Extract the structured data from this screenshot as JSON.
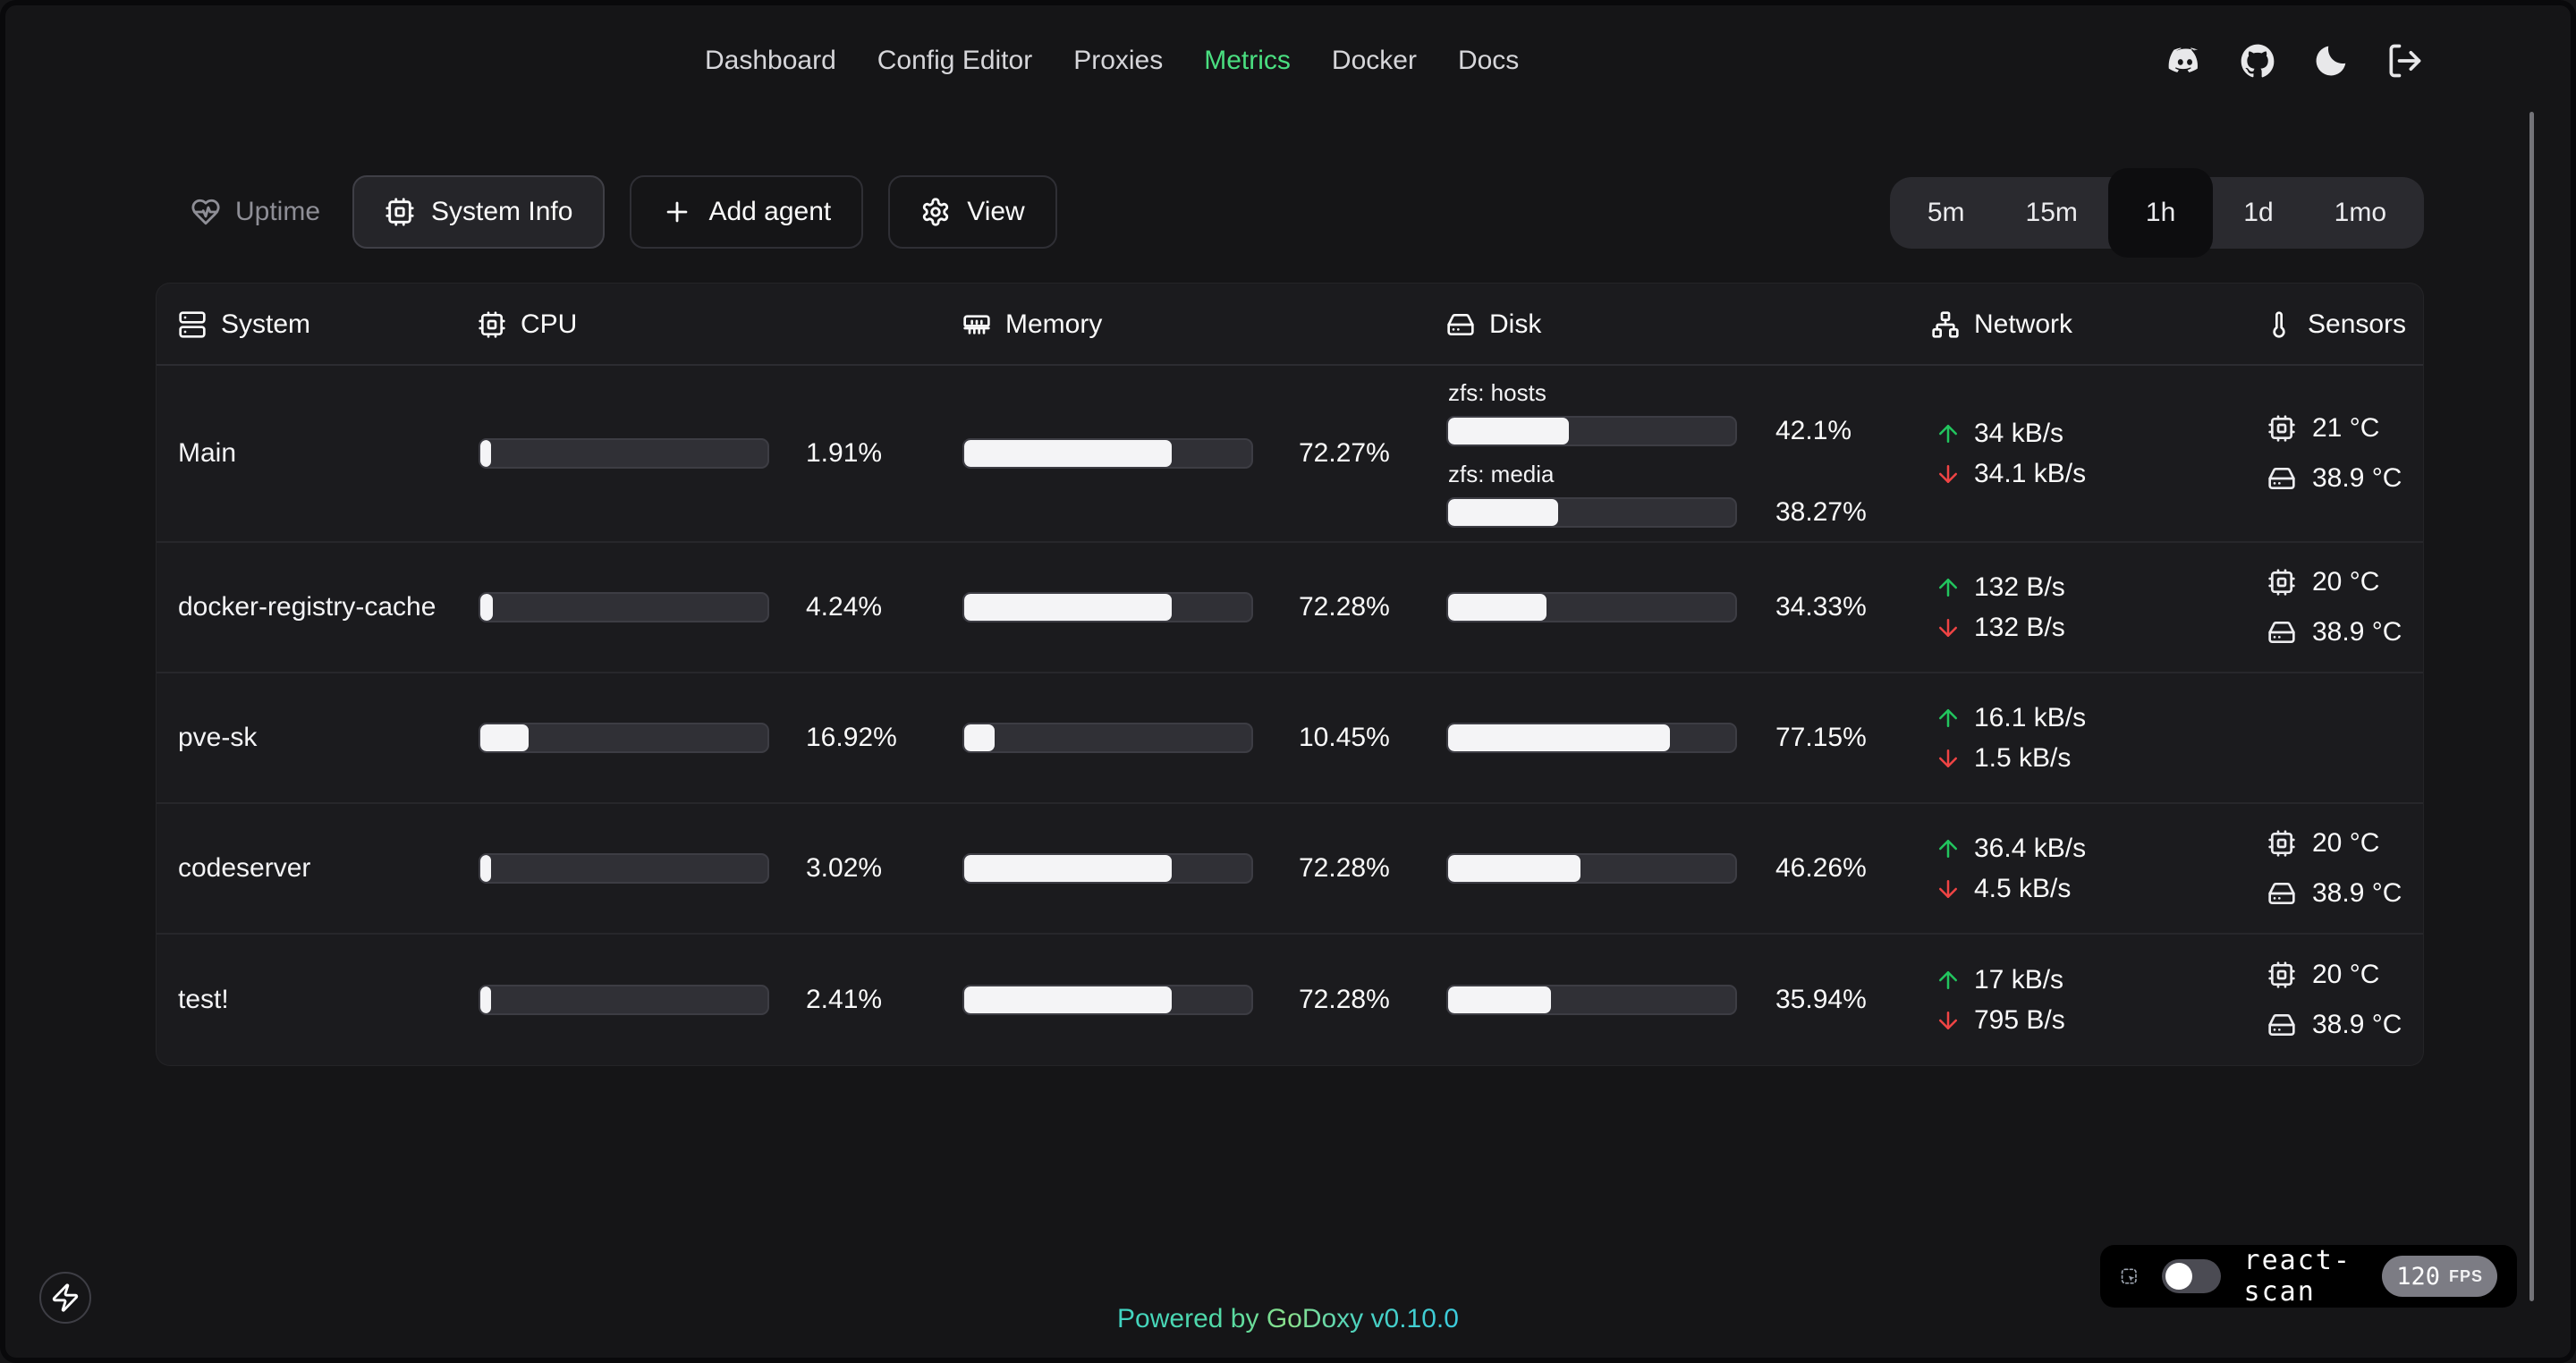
{
  "nav": {
    "items": [
      {
        "label": "Dashboard",
        "active": false
      },
      {
        "label": "Config Editor",
        "active": false
      },
      {
        "label": "Proxies",
        "active": false
      },
      {
        "label": "Metrics",
        "active": true
      },
      {
        "label": "Docker",
        "active": false
      },
      {
        "label": "Docs",
        "active": false
      }
    ],
    "icons": [
      "discord",
      "github",
      "dark-mode",
      "logout"
    ],
    "active_color": "#4ade80"
  },
  "toolbar": {
    "uptime_label": "Uptime",
    "system_info_label": "System Info",
    "add_agent_label": "Add agent",
    "view_label": "View"
  },
  "time_range": {
    "options": [
      "5m",
      "15m",
      "1h",
      "1d",
      "1mo"
    ],
    "selected": "1h"
  },
  "table": {
    "columns": [
      {
        "label": "System",
        "icon": "server"
      },
      {
        "label": "CPU",
        "icon": "cpu"
      },
      {
        "label": "Memory",
        "icon": "memory"
      },
      {
        "label": "Disk",
        "icon": "hard-drive"
      },
      {
        "label": "Network",
        "icon": "network"
      },
      {
        "label": "Sensors",
        "icon": "thermometer"
      }
    ],
    "rows": [
      {
        "system": "Main",
        "cpu_pct": 1.91,
        "cpu_label": "1.91%",
        "mem_pct": 72.27,
        "mem_label": "72.27%",
        "disks": [
          {
            "name": "zfs: hosts",
            "pct": 42.1,
            "label": "42.1%"
          },
          {
            "name": "zfs: media",
            "pct": 38.27,
            "label": "38.27%"
          }
        ],
        "net_up": "34 kB/s",
        "net_down": "34.1 kB/s",
        "cpu_temp": "21 °C",
        "disk_temp": "38.9 °C"
      },
      {
        "system": "docker-registry-cache",
        "cpu_pct": 4.24,
        "cpu_label": "4.24%",
        "mem_pct": 72.28,
        "mem_label": "72.28%",
        "disks": [
          {
            "name": "",
            "pct": 34.33,
            "label": "34.33%"
          }
        ],
        "net_up": "132 B/s",
        "net_down": "132 B/s",
        "cpu_temp": "20 °C",
        "disk_temp": "38.9 °C"
      },
      {
        "system": "pve-sk",
        "cpu_pct": 16.92,
        "cpu_label": "16.92%",
        "mem_pct": 10.45,
        "mem_label": "10.45%",
        "disks": [
          {
            "name": "",
            "pct": 77.15,
            "label": "77.15%"
          }
        ],
        "net_up": "16.1 kB/s",
        "net_down": "1.5 kB/s",
        "cpu_temp": "",
        "disk_temp": ""
      },
      {
        "system": "codeserver",
        "cpu_pct": 3.02,
        "cpu_label": "3.02%",
        "mem_pct": 72.28,
        "mem_label": "72.28%",
        "disks": [
          {
            "name": "",
            "pct": 46.26,
            "label": "46.26%"
          }
        ],
        "net_up": "36.4 kB/s",
        "net_down": "4.5 kB/s",
        "cpu_temp": "20 °C",
        "disk_temp": "38.9 °C"
      },
      {
        "system": "test!",
        "cpu_pct": 2.41,
        "cpu_label": "2.41%",
        "mem_pct": 72.28,
        "mem_label": "72.28%",
        "disks": [
          {
            "name": "",
            "pct": 35.94,
            "label": "35.94%"
          }
        ],
        "net_up": "17 kB/s",
        "net_down": "795 B/s",
        "cpu_temp": "20 °C",
        "disk_temp": "38.9 °C"
      }
    ]
  },
  "network_colors": {
    "up": "#22c55e",
    "down": "#ef4444"
  },
  "react_scan": {
    "label": "react-scan",
    "fps": "120",
    "fps_unit": "FPS",
    "toggle_on": false
  },
  "footer": {
    "powered_text": "Powered by",
    "brand": "GoDoxy",
    "version": "v0.10.0"
  }
}
